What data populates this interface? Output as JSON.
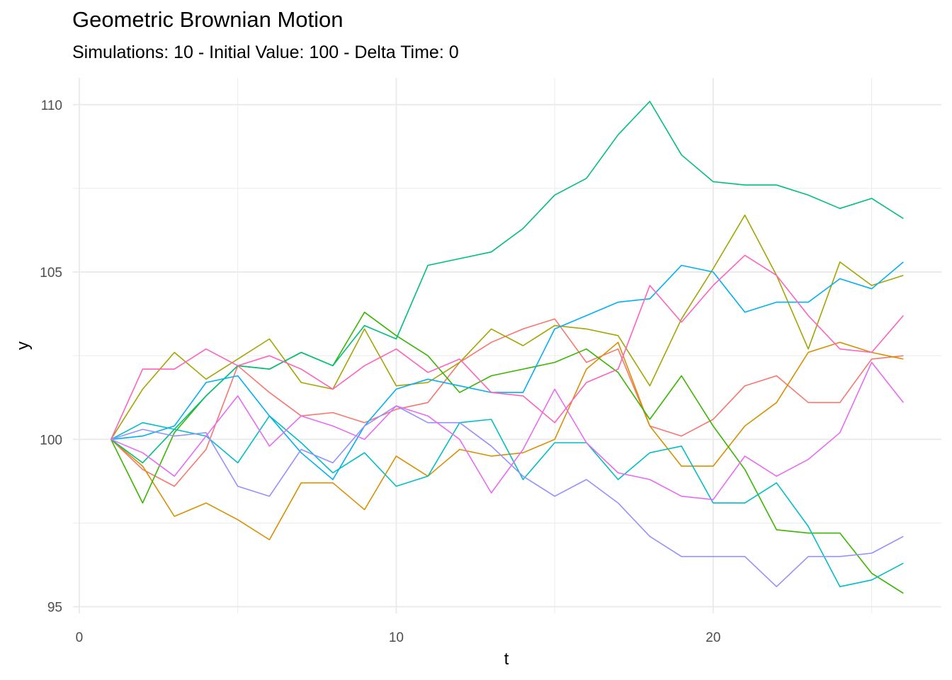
{
  "chart_data": {
    "type": "line",
    "title": "Geometric Brownian Motion",
    "subtitle": "Simulations: 10 - Initial Value: 100 - Delta Time: 0",
    "xlabel": "t",
    "ylabel": "y",
    "xlim": [
      -0.2,
      27.2
    ],
    "ylim": [
      94.8,
      110.8
    ],
    "x_ticks": [
      0,
      10,
      20
    ],
    "y_ticks": [
      95,
      100,
      105,
      110
    ],
    "x_minor": [
      5,
      15,
      25
    ],
    "y_minor": [
      97.5,
      102.5,
      107.5
    ],
    "grid": true,
    "legend": "none",
    "x": [
      1,
      2,
      3,
      4,
      5,
      6,
      7,
      8,
      9,
      10,
      11,
      12,
      13,
      14,
      15,
      16,
      17,
      18,
      19,
      20,
      21,
      22,
      23,
      24,
      25,
      26
    ],
    "series": [
      {
        "color": "#F8766D",
        "values": [
          100,
          99.1,
          98.6,
          99.7,
          102.2,
          101.4,
          100.7,
          100.8,
          100.5,
          100.9,
          101.1,
          102.3,
          102.9,
          103.3,
          103.6,
          102.3,
          102.7,
          100.4,
          100.1,
          100.6,
          101.6,
          101.9,
          101.1,
          101.1,
          102.4,
          102.5
        ]
      },
      {
        "color": "#D89000",
        "values": [
          100,
          99.2,
          97.7,
          98.1,
          97.6,
          97.0,
          98.7,
          98.7,
          97.9,
          99.5,
          98.9,
          99.7,
          99.5,
          99.6,
          100.0,
          102.1,
          102.9,
          100.4,
          99.2,
          99.2,
          100.4,
          101.1,
          102.6,
          102.9,
          102.6,
          102.4
        ]
      },
      {
        "color": "#A3A500",
        "values": [
          100,
          101.5,
          102.6,
          101.8,
          102.4,
          103.0,
          101.7,
          101.5,
          103.3,
          101.6,
          101.7,
          102.3,
          103.3,
          102.8,
          103.4,
          103.3,
          103.1,
          101.6,
          103.6,
          105.1,
          106.7,
          104.9,
          102.7,
          105.3,
          104.6,
          104.9
        ]
      },
      {
        "color": "#39B600",
        "values": [
          100,
          98.1,
          100.2,
          101.3,
          102.2,
          102.1,
          102.6,
          102.2,
          103.8,
          103.1,
          102.5,
          101.4,
          101.9,
          102.1,
          102.3,
          102.7,
          102.0,
          100.6,
          101.9,
          100.4,
          99.1,
          97.3,
          97.2,
          97.2,
          96.0,
          95.4
        ]
      },
      {
        "color": "#00BF7D",
        "values": [
          100,
          99.3,
          100.3,
          101.3,
          102.2,
          102.1,
          102.6,
          102.2,
          103.4,
          103.0,
          105.2,
          105.4,
          105.6,
          106.3,
          107.3,
          107.8,
          109.1,
          110.1,
          108.5,
          107.7,
          107.6,
          107.6,
          107.3,
          106.9,
          107.2,
          106.6
        ]
      },
      {
        "color": "#00BFC4",
        "values": [
          100,
          100.5,
          100.3,
          100.1,
          99.3,
          100.7,
          99.9,
          99.0,
          99.6,
          98.6,
          98.9,
          100.5,
          100.6,
          98.8,
          99.9,
          99.9,
          98.8,
          99.6,
          99.8,
          98.1,
          98.1,
          98.7,
          97.4,
          95.6,
          95.8,
          96.3
        ]
      },
      {
        "color": "#00B0F6",
        "values": [
          100,
          100.1,
          100.4,
          101.7,
          101.9,
          100.7,
          99.6,
          98.8,
          100.4,
          101.5,
          101.8,
          101.6,
          101.4,
          101.4,
          103.3,
          103.7,
          104.1,
          104.2,
          105.2,
          105.0,
          103.8,
          104.1,
          104.1,
          104.8,
          104.5,
          105.3
        ]
      },
      {
        "color": "#9590FF",
        "values": [
          100,
          100.3,
          100.1,
          100.2,
          98.6,
          98.3,
          99.7,
          99.3,
          100.4,
          101.0,
          100.5,
          100.5,
          99.8,
          98.9,
          98.3,
          98.8,
          98.1,
          97.1,
          96.5,
          96.5,
          96.5,
          95.6,
          96.5,
          96.5,
          96.6,
          97.1
        ]
      },
      {
        "color": "#E76BF3",
        "values": [
          100,
          99.6,
          98.9,
          100.1,
          101.3,
          99.8,
          100.7,
          100.4,
          100.0,
          101.0,
          100.7,
          100.0,
          98.4,
          99.7,
          101.5,
          99.9,
          99.0,
          98.8,
          98.3,
          98.2,
          99.5,
          98.9,
          99.4,
          100.2,
          102.3,
          101.1
        ]
      },
      {
        "color": "#FF62BC",
        "values": [
          100,
          102.1,
          102.1,
          102.7,
          102.2,
          102.5,
          102.1,
          101.5,
          102.2,
          102.7,
          102.0,
          102.4,
          101.4,
          101.3,
          100.5,
          101.7,
          102.1,
          104.6,
          103.5,
          104.6,
          105.5,
          104.9,
          103.7,
          102.7,
          102.6,
          103.7
        ]
      }
    ]
  }
}
